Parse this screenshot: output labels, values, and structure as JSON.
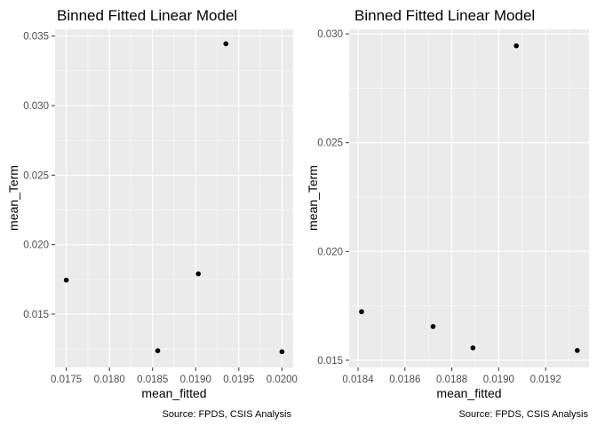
{
  "chart_data": [
    {
      "type": "scatter",
      "title": "Binned Fitted Linear Model",
      "xlabel": "mean_fitted",
      "ylabel": "mean_Term",
      "caption": "Source: FPDS, CSIS Analysis",
      "xlim": [
        0.01737,
        0.02013
      ],
      "ylim": [
        0.01117,
        0.03549
      ],
      "x_ticks": [
        "0.0175",
        "0.0180",
        "0.0185",
        "0.0190",
        "0.0195",
        "0.0200"
      ],
      "x_tick_values": [
        0.0175,
        0.018,
        0.0185,
        0.019,
        0.0195,
        0.02
      ],
      "y_ticks": [
        "0.015",
        "0.020",
        "0.025",
        "0.030",
        "0.035"
      ],
      "y_tick_values": [
        0.015,
        0.02,
        0.025,
        0.03,
        0.035
      ],
      "grid": true,
      "points": [
        {
          "x": 0.0175,
          "y": 0.01745
        },
        {
          "x": 0.01856,
          "y": 0.01237
        },
        {
          "x": 0.01903,
          "y": 0.0179
        },
        {
          "x": 0.01935,
          "y": 0.03445
        },
        {
          "x": 0.02,
          "y": 0.0123
        }
      ]
    },
    {
      "type": "scatter",
      "title": "Binned Fitted Linear Model",
      "xlabel": "mean_fitted",
      "ylabel": "mean_Term",
      "caption": "Source: FPDS, CSIS Analysis",
      "xlim": [
        0.018362,
        0.019385
      ],
      "ylim": [
        0.01467,
        0.03021
      ],
      "x_ticks": [
        "0.0184",
        "0.0186",
        "0.0188",
        "0.0190",
        "0.0192"
      ],
      "x_tick_values": [
        0.0184,
        0.0186,
        0.0188,
        0.019,
        0.0192
      ],
      "y_ticks": [
        "0.015",
        "0.020",
        "0.025",
        "0.030"
      ],
      "y_tick_values": [
        0.015,
        0.02,
        0.025,
        0.03
      ],
      "grid": true,
      "points": [
        {
          "x": 0.018415,
          "y": 0.01723
        },
        {
          "x": 0.01872,
          "y": 0.01655
        },
        {
          "x": 0.01889,
          "y": 0.01557
        },
        {
          "x": 0.019075,
          "y": 0.02945
        },
        {
          "x": 0.019335,
          "y": 0.01545
        }
      ]
    }
  ]
}
